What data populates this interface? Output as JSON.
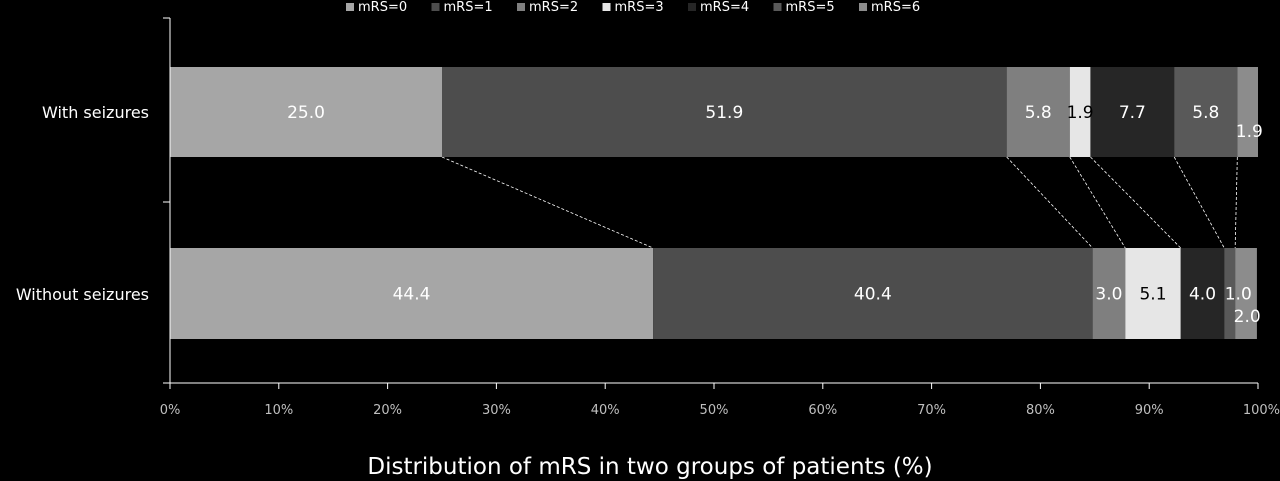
{
  "chart_data": {
    "type": "bar",
    "orientation": "horizontal",
    "stacked": "100%",
    "categories": [
      "With seizures",
      "Without seizures"
    ],
    "series": [
      {
        "name": "mRS=0",
        "values": [
          25.0,
          44.4
        ],
        "color": "#a6a6a6",
        "label_color": "#ffffff"
      },
      {
        "name": "mRS=1",
        "values": [
          51.9,
          40.4
        ],
        "color": "#4d4d4d",
        "label_color": "#ffffff"
      },
      {
        "name": "mRS=2",
        "values": [
          5.8,
          3.0
        ],
        "color": "#7f7f7f",
        "label_color": "#ffffff"
      },
      {
        "name": "mRS=3",
        "values": [
          1.9,
          5.1
        ],
        "color": "#e6e6e6",
        "label_color": "#000000"
      },
      {
        "name": "mRS=4",
        "values": [
          7.7,
          4.0
        ],
        "color": "#262626",
        "label_color": "#ffffff"
      },
      {
        "name": "mRS=5",
        "values": [
          5.8,
          1.0
        ],
        "color": "#595959",
        "label_color": "#ffffff"
      },
      {
        "name": "mRS=6",
        "values": [
          1.9,
          2.0
        ],
        "color": "#8c8c8c",
        "label_color": "#ffffff"
      }
    ],
    "data_labels": [
      [
        "25.0",
        "51.9",
        "5.8",
        "1.9",
        "7.7",
        "5.8",
        "1.9"
      ],
      [
        "44.4",
        "40.4",
        "3.0",
        "5.1",
        "4.0",
        "1.0",
        "2.0"
      ]
    ],
    "x_ticks": [
      "0%",
      "10%",
      "20%",
      "30%",
      "40%",
      "50%",
      "60%",
      "70%",
      "80%",
      "90%",
      "100%"
    ],
    "xlim": [
      0,
      100
    ],
    "xlabel": "Distribution of mRS in two groups of patients (%)",
    "ylabel": "",
    "title": "",
    "legend_position": "top",
    "grid": false,
    "series_lines": "dashed connectors between category bars at segment boundaries",
    "colors": {
      "background": "#000000",
      "axis": "#ffffff",
      "text": "#ffffff",
      "connector": "#ffffff"
    }
  }
}
